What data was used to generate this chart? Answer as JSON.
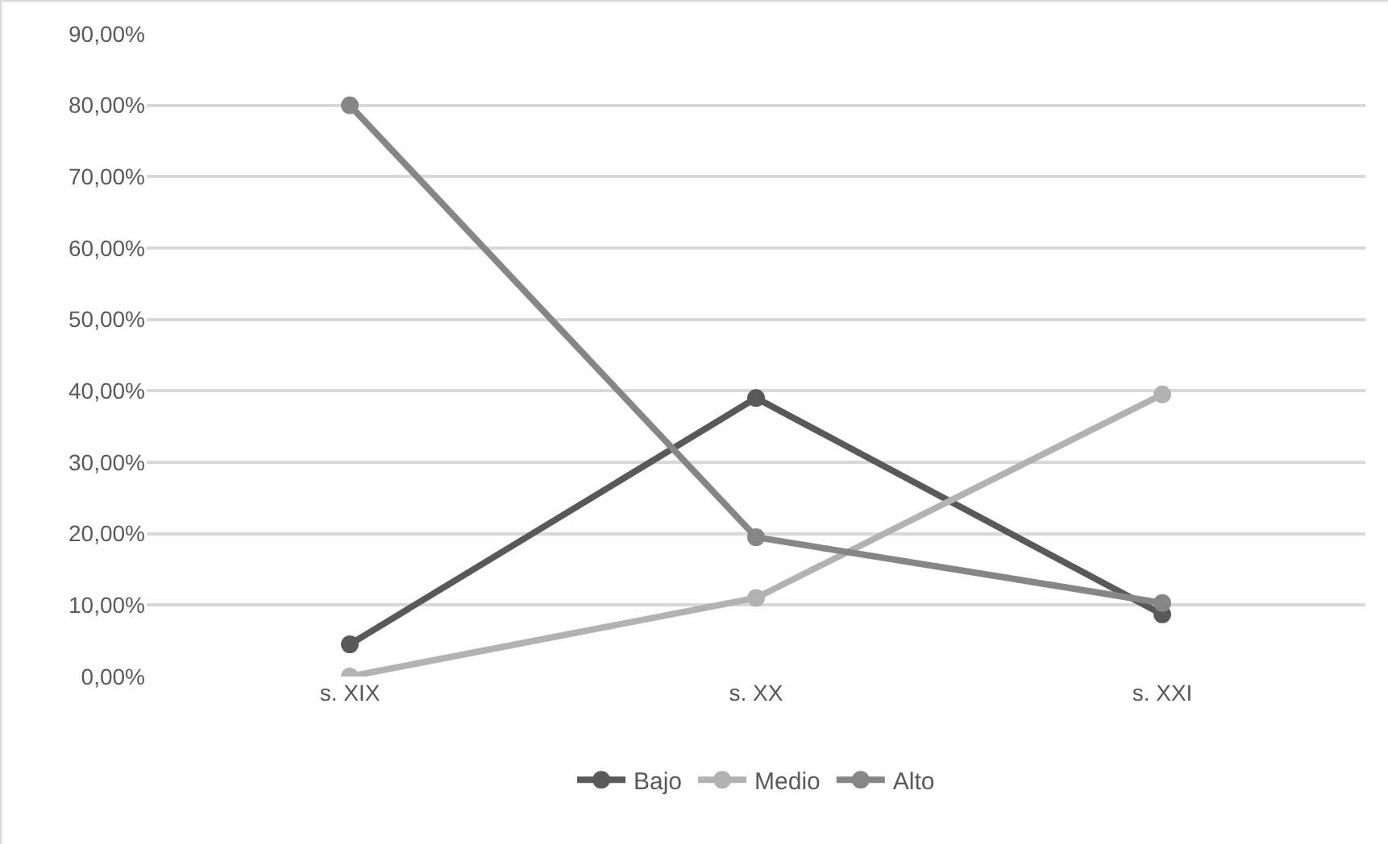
{
  "chart_data": {
    "type": "line",
    "categories": [
      "s. XIX",
      "s. XX",
      "s. XXI"
    ],
    "series": [
      {
        "name": "Bajo",
        "color": "#595959",
        "values": [
          4.5,
          39,
          8.7
        ]
      },
      {
        "name": "Medio",
        "color": "#b2b2b2",
        "values": [
          0,
          11,
          39.5
        ]
      },
      {
        "name": "Alto",
        "color": "#868686",
        "values": [
          80,
          19.5,
          10.3
        ]
      }
    ],
    "ylim": [
      0,
      90
    ],
    "yticks": [
      {
        "value": 0,
        "label": "0,00%"
      },
      {
        "value": 10,
        "label": "10,00%"
      },
      {
        "value": 20,
        "label": "20,00%"
      },
      {
        "value": 30,
        "label": "30,00%"
      },
      {
        "value": 40,
        "label": "40,00%"
      },
      {
        "value": 50,
        "label": "50,00%"
      },
      {
        "value": 60,
        "label": "60,00%"
      },
      {
        "value": 70,
        "label": "70,00%"
      },
      {
        "value": 80,
        "label": "80,00%"
      },
      {
        "value": 90,
        "label": "90,00%"
      }
    ],
    "grid": "y",
    "legend": "bottom",
    "marker": "circle",
    "line_style": "solid"
  }
}
